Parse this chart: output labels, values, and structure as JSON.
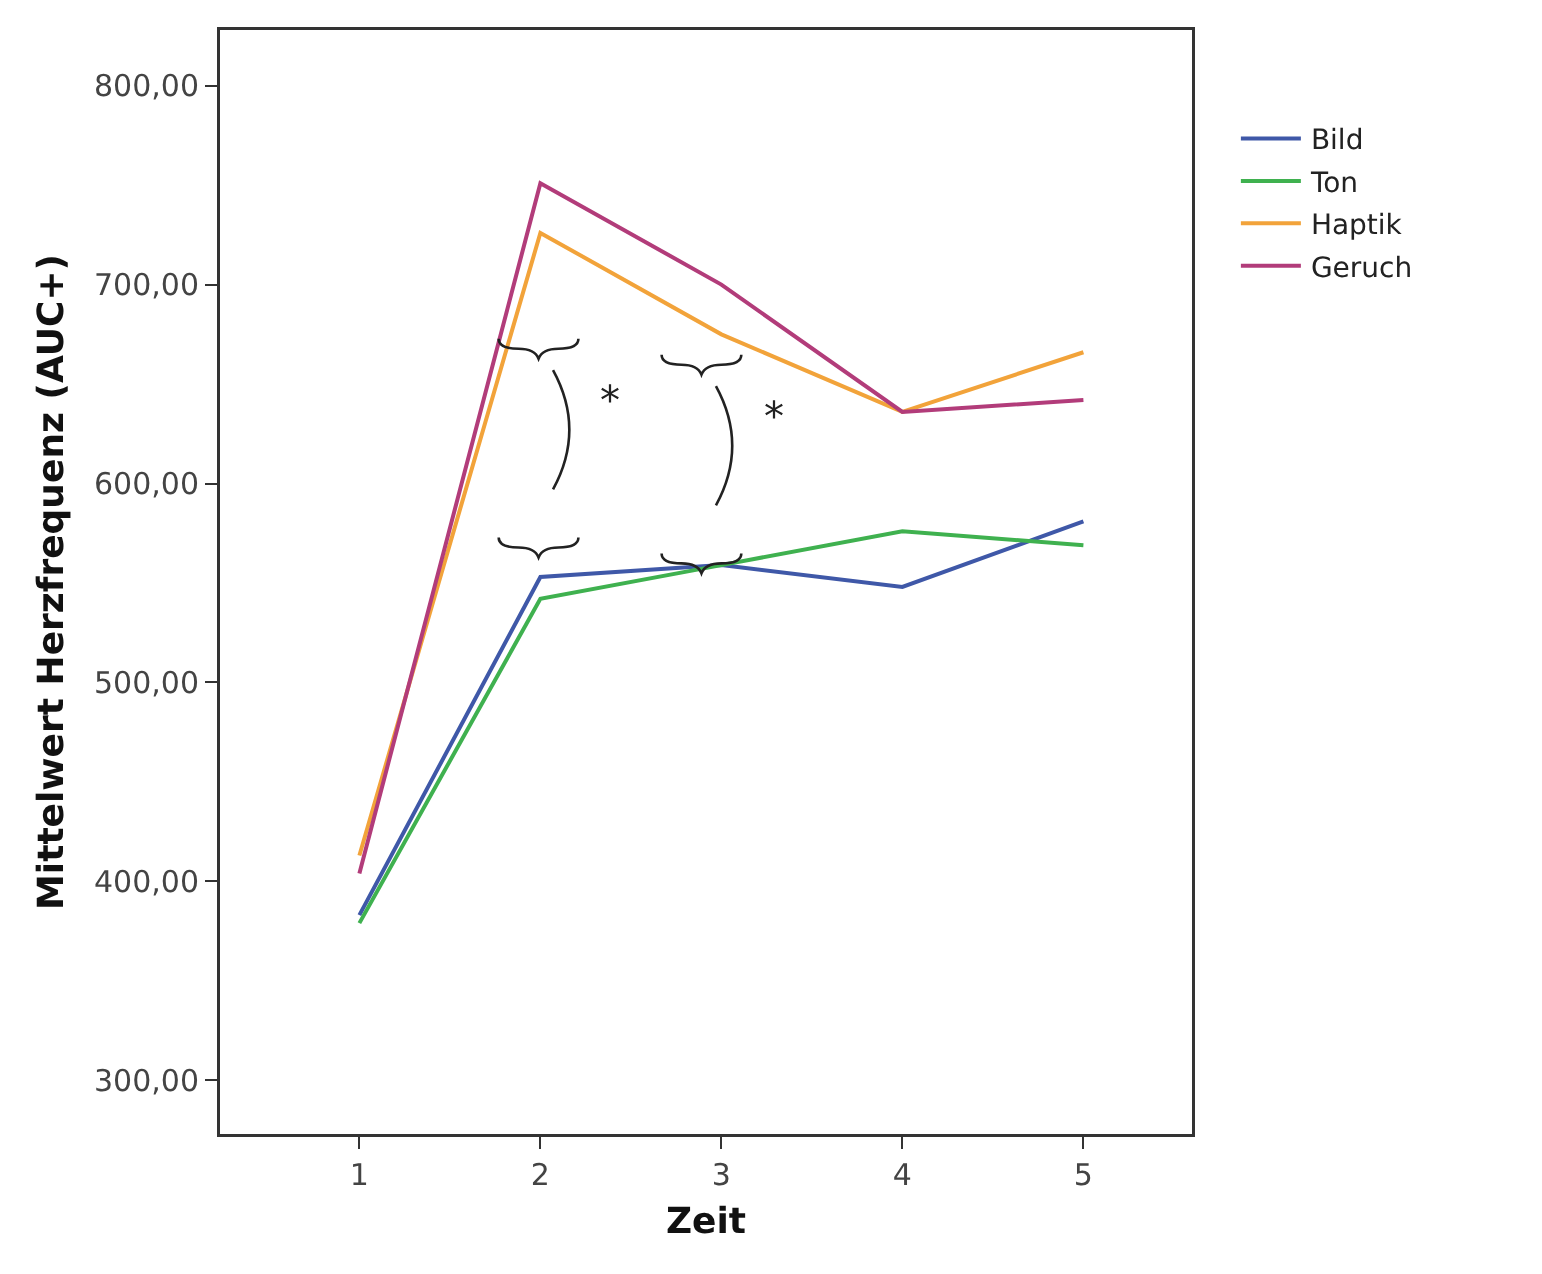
{
  "chart_data": {
    "type": "line",
    "xlabel": "Zeit",
    "ylabel": "Mittelwert Herzfrequenz (AUC+)",
    "x": [
      1,
      2,
      3,
      4,
      5
    ],
    "series": [
      {
        "name": "Bild",
        "color": "#3f58a8",
        "values": [
          383,
          553,
          559,
          548,
          581
        ]
      },
      {
        "name": "Ton",
        "color": "#3fb14f",
        "values": [
          379,
          542,
          559,
          576,
          569
        ]
      },
      {
        "name": "Haptik",
        "color": "#f2a33a",
        "values": [
          413,
          726,
          675,
          636,
          666
        ]
      },
      {
        "name": "Geruch",
        "color": "#b23c7a",
        "values": [
          404,
          751,
          700,
          636,
          642
        ]
      }
    ],
    "xlim": [
      0.23,
      5.6
    ],
    "xticks": [
      1,
      2,
      3,
      4,
      5
    ],
    "ylim": [
      273,
      828
    ],
    "yticks": [
      {
        "value": 300,
        "label": "300,00"
      },
      {
        "value": 400,
        "label": "400,00"
      },
      {
        "value": 500,
        "label": "500,00"
      },
      {
        "value": 600,
        "label": "600,00"
      },
      {
        "value": 700,
        "label": "700,00"
      },
      {
        "value": 800,
        "label": "800,00"
      }
    ],
    "annotations": [
      {
        "text": "*",
        "x": 2.4,
        "y": 706
      },
      {
        "text": "*",
        "x": 3,
        "y": 675
      }
    ],
    "legend": "top right",
    "marker": "none",
    "line_style": "solid"
  }
}
